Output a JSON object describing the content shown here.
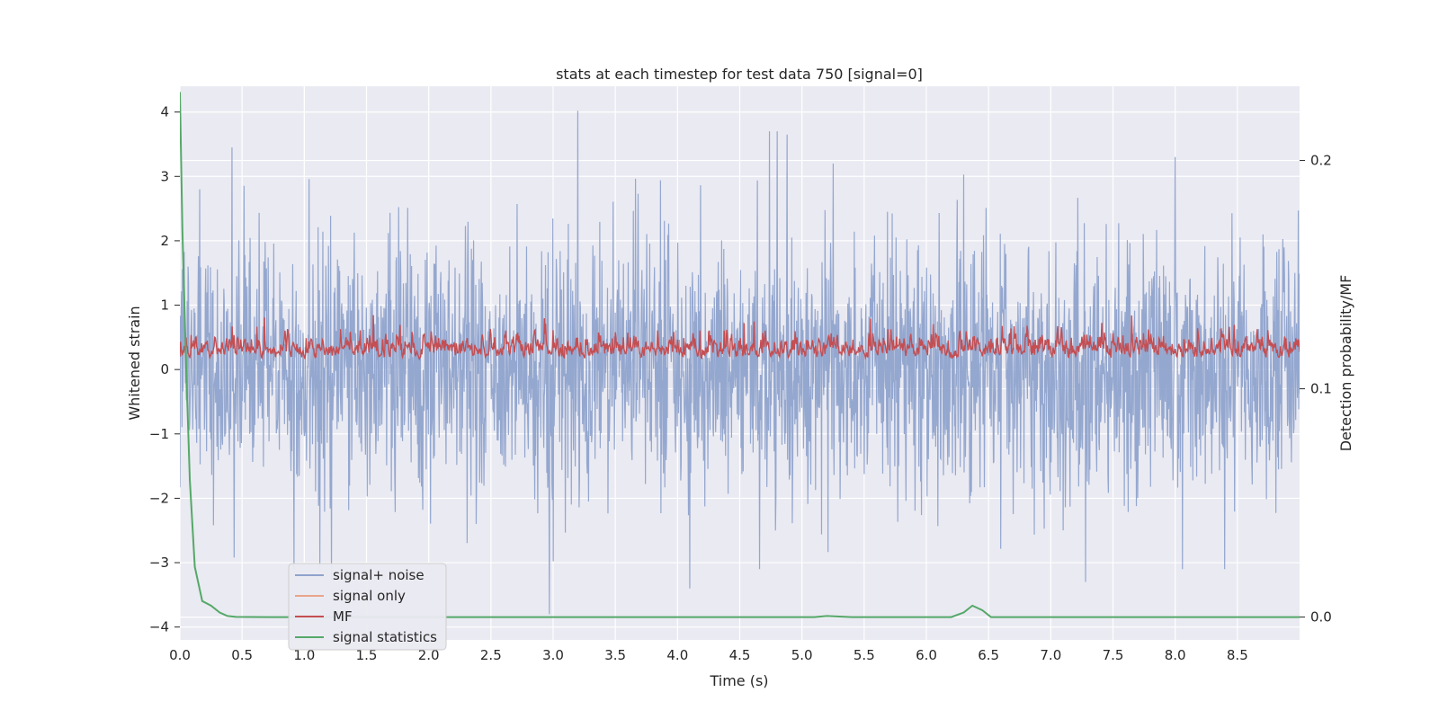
{
  "chart_data": {
    "type": "line",
    "title": "stats at each timestep for test data 750 [signal=0]",
    "xlabel": "Time (s)",
    "ylabel": "Whitened strain",
    "y2label": "Detection probability/MF",
    "xlim": [
      0.0,
      9.0
    ],
    "ylim": [
      -4.2,
      4.4
    ],
    "y2lim": [
      -0.01,
      0.2325
    ],
    "xticks": [
      "0.0",
      "0.5",
      "1.0",
      "1.5",
      "2.0",
      "2.5",
      "3.0",
      "3.5",
      "4.0",
      "4.5",
      "5.0",
      "5.5",
      "6.0",
      "6.5",
      "7.0",
      "7.5",
      "8.0",
      "8.5"
    ],
    "yticks": [
      "4",
      "3",
      "2",
      "1",
      "0",
      "−1",
      "−2",
      "−3",
      "−4"
    ],
    "y2ticks": [
      "0.2",
      "0.1",
      "0.0"
    ],
    "grid": true,
    "legend_placement": "lower-left",
    "series": [
      {
        "name": "signal+ noise",
        "color": "#8fa3cc",
        "axis": "left",
        "peaks": [
          [
            0.42,
            3.45
          ],
          [
            0.16,
            2.8
          ],
          [
            3.2,
            4.02
          ],
          [
            4.74,
            3.7
          ],
          [
            4.8,
            3.7
          ],
          [
            4.88,
            3.65
          ],
          [
            5.25,
            3.2
          ],
          [
            8.0,
            3.3
          ],
          [
            2.97,
            -3.8
          ],
          [
            4.1,
            -3.4
          ],
          [
            1.22,
            -3.25
          ],
          [
            7.28,
            -3.3
          ]
        ]
      },
      {
        "name": "signal only",
        "color": "#e8a58a",
        "axis": "left",
        "values": []
      },
      {
        "name": "MF",
        "color": "#c44e52",
        "axis": "right",
        "range": [
          0.105,
          0.145
        ]
      },
      {
        "name": "signal statistics",
        "color": "#55a868",
        "axis": "right",
        "x": [
          0.0,
          0.02,
          0.05,
          0.08,
          0.12,
          0.18,
          0.25,
          0.32,
          0.38,
          0.45,
          0.7,
          5.1,
          5.2,
          5.4,
          6.2,
          6.3,
          6.37,
          6.45,
          6.52,
          9.0
        ],
        "values": [
          0.23,
          0.17,
          0.11,
          0.06,
          0.022,
          0.007,
          0.005,
          0.002,
          0.0005,
          0.0001,
          0.0,
          0.0,
          0.0005,
          0.0,
          0.0,
          0.002,
          0.005,
          0.003,
          0.0,
          0.0
        ]
      }
    ]
  }
}
